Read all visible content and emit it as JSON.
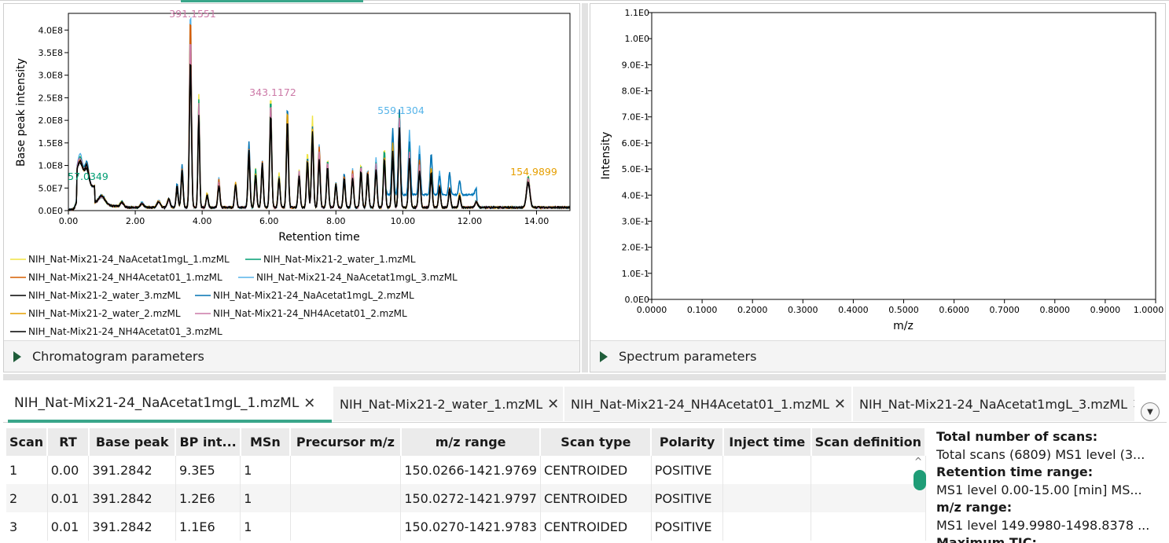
{
  "chromatogram": {
    "ylabel": "Base peak intensity",
    "xlabel": "Retention time",
    "yticks": [
      "0.0E0",
      "5.0E7",
      "1.0E8",
      "1.5E8",
      "2.0E8",
      "2.5E8",
      "3.0E8",
      "3.5E8",
      "4.0E8"
    ],
    "xticks": [
      "0.00",
      "2.00",
      "4.00",
      "6.00",
      "8.00",
      "10.00",
      "12.00",
      "14.00"
    ],
    "annotations": [
      {
        "text": "391.1551",
        "color": "#cc79a7"
      },
      {
        "text": "343.1172",
        "color": "#cc79a7"
      },
      {
        "text": "559.1304",
        "color": "#56b4e9"
      },
      {
        "text": "57.0349",
        "color": "#009e73"
      },
      {
        "text": "154.9899",
        "color": "#e69f00"
      }
    ],
    "legend": [
      {
        "label": "NIH_Nat-Mix21-24_NaAcetat1mgL_1.mzML",
        "color": "#f0e442"
      },
      {
        "label": "NIH_Nat-Mix21-2_water_1.mzML",
        "color": "#009e73"
      },
      {
        "label": "NIH_Nat-Mix21-24_NH4Acetat01_1.mzML",
        "color": "#d55e00"
      },
      {
        "label": "NIH_Nat-Mix21-24_NaAcetat1mgL_3.mzML",
        "color": "#56b4e9"
      },
      {
        "label": "NIH_Nat-Mix21-2_water_3.mzML",
        "color": "#000000"
      },
      {
        "label": "NIH_Nat-Mix21-24_NaAcetat1mgL_2.mzML",
        "color": "#0072b2"
      },
      {
        "label": "NIH_Nat-Mix21-2_water_2.mzML",
        "color": "#e69f00"
      },
      {
        "label": "NIH_Nat-Mix21-24_NH4Acetat01_2.mzML",
        "color": "#cc79a7"
      },
      {
        "label": "NIH_Nat-Mix21-24_NH4Acetat01_3.mzML",
        "color": "#000000"
      }
    ],
    "params_label": "Chromatogram parameters"
  },
  "spectrum": {
    "ylabel": "Intensity",
    "xlabel": "m/z",
    "yticks": [
      "0.0E0",
      "1.0E-1",
      "2.0E-1",
      "3.0E-1",
      "4.0E-1",
      "5.0E-1",
      "6.0E-1",
      "7.0E-1",
      "8.0E-1",
      "9.0E-1",
      "1.0E0",
      "1.1E0"
    ],
    "xticks": [
      "0.0000",
      "0.1000",
      "0.2000",
      "0.3000",
      "0.4000",
      "0.5000",
      "0.6000",
      "0.7000",
      "0.8000",
      "0.9000",
      "1.0000"
    ],
    "params_label": "Spectrum parameters"
  },
  "tabs": [
    {
      "label": "NIH_Nat-Mix21-24_NaAcetat1mgL_1.mzML",
      "close": "✕"
    },
    {
      "label": "NIH_Nat-Mix21-2_water_1.mzML",
      "close": "✕"
    },
    {
      "label": "NIH_Nat-Mix21-24_NH4Acetat01_1.mzML",
      "close": "✕"
    },
    {
      "label": "NIH_Nat-Mix21-24_NaAcetat1mgL_3.mzML",
      "close": "✕"
    }
  ],
  "table": {
    "headers": [
      "Scan",
      "RT",
      "Base peak",
      "BP int...",
      "MSn",
      "Precursor m/z",
      "m/z range",
      "Scan type",
      "Polarity",
      "Inject time",
      "Scan definition"
    ],
    "rows": [
      [
        "1",
        "0.00",
        "391.2842",
        "9.3E5",
        "1",
        "",
        "150.0266-1421.9769",
        "CENTROIDED",
        "POSITIVE",
        "",
        ""
      ],
      [
        "2",
        "0.01",
        "391.2842",
        "1.2E6",
        "1",
        "",
        "150.0272-1421.9797",
        "CENTROIDED",
        "POSITIVE",
        "",
        ""
      ],
      [
        "3",
        "0.01",
        "391.2842",
        "1.1E6",
        "1",
        "",
        "150.0270-1421.9783",
        "CENTROIDED",
        "POSITIVE",
        "",
        ""
      ]
    ]
  },
  "info": {
    "total_scans_h": "Total number of scans:",
    "total_scans_v": "Total scans (6809) MS1 level (3...",
    "rt_range_h": "Retention time range:",
    "rt_range_v": "MS1 level 0.00-15.00 [min] MS...",
    "mz_range_h": "m/z range:",
    "mz_range_v": "MS1 level 149.9980-1498.8378 ...",
    "max_tic_h": "Maximum TIC:"
  }
}
